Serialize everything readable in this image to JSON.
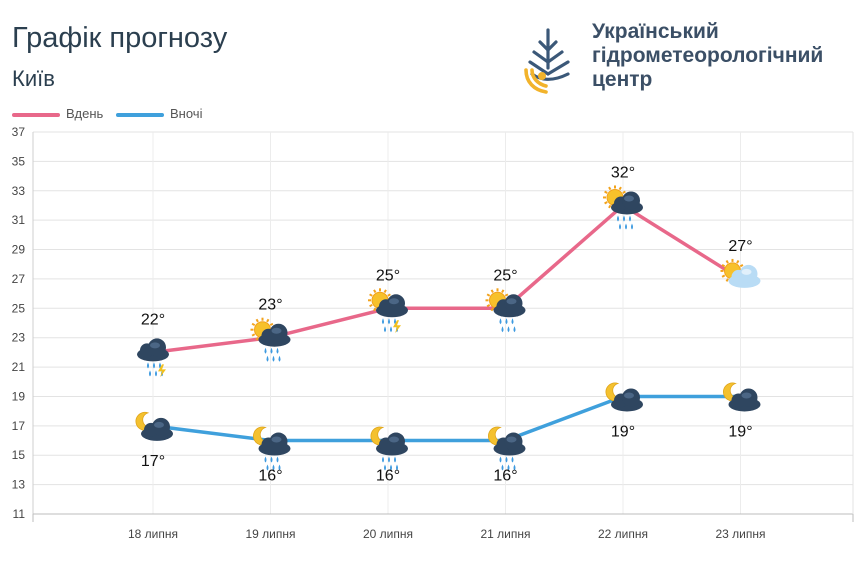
{
  "header": {
    "title": "Графік прогнозу",
    "city": "Київ"
  },
  "organization": {
    "line1": "Український",
    "line2": "гідрометеорологічний",
    "line3": "центр"
  },
  "legend": {
    "day_label": "Вдень",
    "night_label": "Вночі",
    "day_color": "#e8688a",
    "night_color": "#3fa0dc"
  },
  "chart_data": {
    "type": "line",
    "categories": [
      "18 липня",
      "19 липня",
      "20 липня",
      "21 липня",
      "22 липня",
      "23 липня"
    ],
    "series": [
      {
        "name": "Вдень",
        "values": [
          22,
          23,
          25,
          25,
          32,
          27
        ],
        "labels": [
          "22°",
          "23°",
          "25°",
          "25°",
          "32°",
          "27°"
        ]
      },
      {
        "name": "Вночі",
        "values": [
          17,
          16,
          16,
          16,
          19,
          19
        ],
        "labels": [
          "17°",
          "16°",
          "16°",
          "16°",
          "19°",
          "19°"
        ]
      }
    ],
    "ylim": [
      11,
      37
    ],
    "yticks": [
      11,
      13,
      15,
      17,
      19,
      21,
      23,
      25,
      27,
      29,
      31,
      33,
      35,
      37
    ],
    "grid": true,
    "legend_position": "top-left",
    "day_icons": [
      "cloud-rain-thunder-icon",
      "sun-cloud-rain-icon",
      "sun-cloud-rain-thunder-icon",
      "sun-cloud-rain-icon",
      "sun-cloud-rain-icon",
      "sun-cloud-icon"
    ],
    "night_icons": [
      "moon-cloud-icon",
      "moon-cloud-rain-icon",
      "moon-cloud-rain-icon",
      "moon-cloud-rain-icon",
      "moon-cloud-icon",
      "moon-cloud-icon"
    ]
  }
}
